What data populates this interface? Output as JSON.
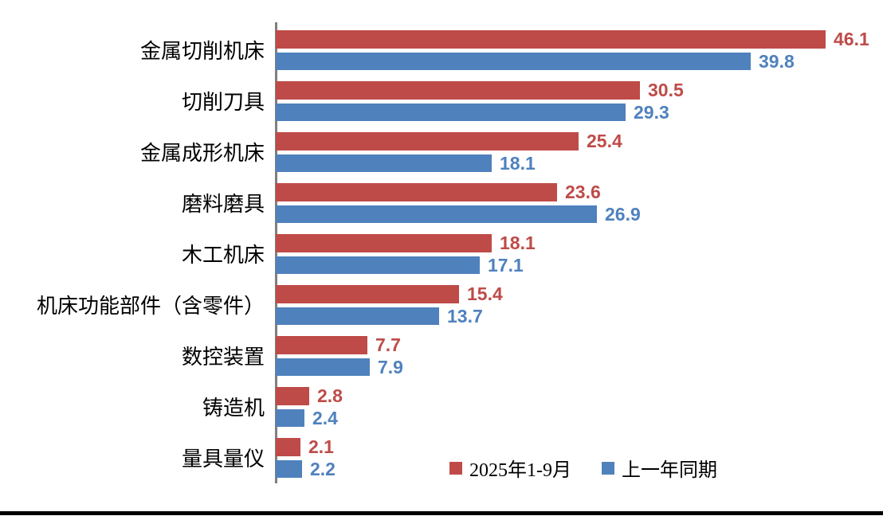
{
  "chart_data": {
    "type": "bar",
    "orientation": "horizontal",
    "title": "",
    "xlabel": "",
    "ylabel": "",
    "xlim": [
      0,
      48
    ],
    "grid": false,
    "value_labels": true,
    "legend_position": "bottom-right-inside",
    "categories": [
      "金属切削机床",
      "切削刀具",
      "金属成形机床",
      "磨料磨具",
      "木工机床",
      "机床功能部件（含零件）",
      "数控装置",
      "铸造机",
      "量具量仪"
    ],
    "series": [
      {
        "name": "2025年1-9月",
        "color": "#be4b48",
        "values": [
          46.1,
          30.5,
          25.4,
          23.6,
          18.1,
          15.4,
          7.7,
          2.8,
          2.1
        ]
      },
      {
        "name": "上一年同期",
        "color": "#4f81bd",
        "values": [
          39.8,
          29.3,
          18.1,
          26.9,
          17.1,
          13.7,
          7.9,
          2.4,
          2.2
        ]
      }
    ]
  },
  "legend": {
    "items": [
      {
        "label": "2025年1-9月",
        "color": "#be4b48"
      },
      {
        "label": "上一年同期",
        "color": "#4f81bd"
      }
    ]
  },
  "colors": {
    "bar_red": "#be4b48",
    "bar_blue": "#4f81bd",
    "axis_line": "#7f7f7f",
    "bottom_line": "#000000",
    "background": "#ffffff",
    "category_text": "#000000",
    "legend_text": "#000000"
  }
}
